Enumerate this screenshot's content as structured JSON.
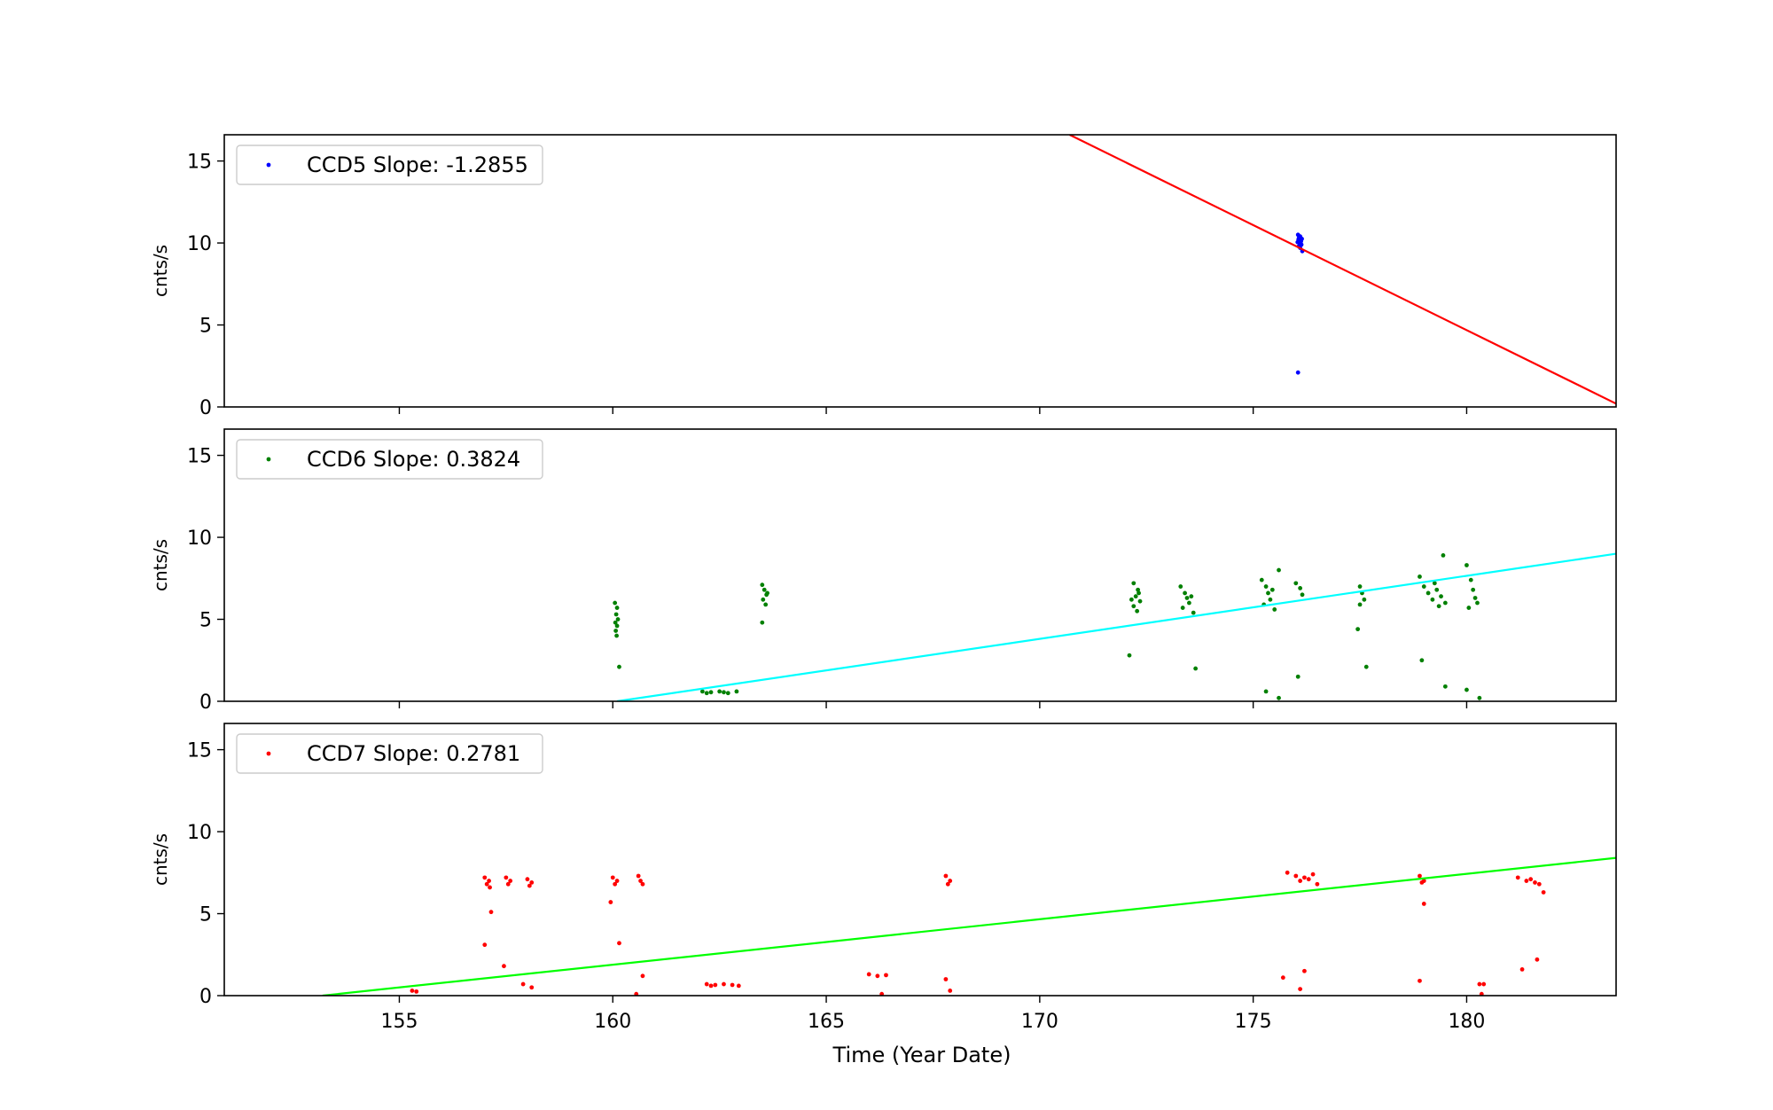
{
  "xlabel": "Time (Year Date)",
  "chart_data": [
    {
      "type": "scatter",
      "ylabel": "cnts/s",
      "legend": "CCD5 Slope: -1.2855",
      "legend_position": "top-left",
      "xlim": [
        150.9,
        183.5
      ],
      "ylim": [
        0,
        16.6
      ],
      "yticks": [
        "0",
        "5",
        "10",
        "15"
      ],
      "xticks": [
        "155",
        "160",
        "165",
        "170",
        "175",
        "180"
      ],
      "point_color": "#0000ff",
      "fit_color": "#ff0000",
      "fit_line": {
        "x": [
          170.7,
          183.5
        ],
        "y": [
          16.6,
          0.2
        ]
      },
      "points": [
        [
          176.05,
          10.5
        ],
        [
          176.07,
          10.3
        ],
        [
          176.1,
          10.4
        ],
        [
          176.12,
          10.1
        ],
        [
          176.08,
          10.0
        ],
        [
          176.13,
          9.9
        ],
        [
          176.06,
          10.2
        ],
        [
          176.1,
          9.7
        ],
        [
          176.15,
          9.5
        ],
        [
          176.09,
          10.35
        ],
        [
          176.11,
          10.15
        ],
        [
          176.04,
          10.05
        ],
        [
          176.14,
          10.25
        ],
        [
          176.07,
          9.8
        ],
        [
          176.05,
          2.1
        ]
      ]
    },
    {
      "type": "scatter",
      "ylabel": "cnts/s",
      "legend": "CCD6 Slope: 0.3824",
      "legend_position": "top-left",
      "xlim": [
        150.9,
        183.5
      ],
      "ylim": [
        0,
        16.6
      ],
      "yticks": [
        "0",
        "5",
        "10",
        "15"
      ],
      "xticks": [
        "155",
        "160",
        "165",
        "170",
        "175",
        "180"
      ],
      "point_color": "#008000",
      "fit_color": "#00ffff",
      "fit_line": {
        "x": [
          160.1,
          183.5
        ],
        "y": [
          0,
          9.0
        ]
      },
      "points": [
        [
          160.05,
          6.0
        ],
        [
          160.1,
          5.7
        ],
        [
          160.08,
          5.3
        ],
        [
          160.12,
          5.0
        ],
        [
          160.06,
          4.8
        ],
        [
          160.1,
          4.6
        ],
        [
          160.07,
          4.3
        ],
        [
          160.09,
          4.0
        ],
        [
          160.15,
          2.1
        ],
        [
          162.1,
          0.6
        ],
        [
          162.3,
          0.55
        ],
        [
          162.5,
          0.6
        ],
        [
          162.7,
          0.5
        ],
        [
          162.9,
          0.6
        ],
        [
          162.2,
          0.5
        ],
        [
          162.6,
          0.55
        ],
        [
          163.5,
          7.1
        ],
        [
          163.55,
          6.8
        ],
        [
          163.6,
          6.5
        ],
        [
          163.52,
          6.2
        ],
        [
          163.58,
          5.9
        ],
        [
          163.62,
          6.6
        ],
        [
          163.5,
          4.8
        ],
        [
          172.2,
          7.2
        ],
        [
          172.3,
          6.8
        ],
        [
          172.25,
          6.4
        ],
        [
          172.35,
          6.1
        ],
        [
          172.2,
          5.8
        ],
        [
          172.28,
          5.5
        ],
        [
          172.32,
          6.6
        ],
        [
          172.15,
          6.2
        ],
        [
          172.1,
          2.8
        ],
        [
          173.3,
          7.0
        ],
        [
          173.4,
          6.6
        ],
        [
          173.45,
          6.3
        ],
        [
          173.5,
          6.0
        ],
        [
          173.35,
          5.7
        ],
        [
          173.55,
          6.4
        ],
        [
          173.6,
          5.4
        ],
        [
          173.65,
          2.0
        ],
        [
          175.2,
          7.4
        ],
        [
          175.3,
          7.0
        ],
        [
          175.35,
          6.6
        ],
        [
          175.4,
          6.2
        ],
        [
          175.25,
          5.9
        ],
        [
          175.45,
          6.8
        ],
        [
          175.5,
          5.6
        ],
        [
          175.6,
          8.0
        ],
        [
          175.3,
          0.6
        ],
        [
          175.6,
          0.2
        ],
        [
          176.0,
          7.2
        ],
        [
          176.1,
          6.9
        ],
        [
          176.15,
          6.5
        ],
        [
          176.05,
          1.5
        ],
        [
          177.5,
          7.0
        ],
        [
          177.55,
          6.6
        ],
        [
          177.6,
          6.2
        ],
        [
          177.5,
          5.9
        ],
        [
          177.45,
          4.4
        ],
        [
          177.65,
          2.1
        ],
        [
          178.9,
          7.6
        ],
        [
          179.0,
          7.0
        ],
        [
          179.1,
          6.6
        ],
        [
          179.2,
          6.2
        ],
        [
          179.3,
          6.8
        ],
        [
          179.4,
          6.4
        ],
        [
          179.5,
          6.0
        ],
        [
          179.35,
          5.8
        ],
        [
          179.25,
          7.2
        ],
        [
          179.45,
          8.9
        ],
        [
          178.95,
          2.5
        ],
        [
          179.5,
          0.9
        ],
        [
          180.0,
          8.3
        ],
        [
          180.1,
          7.4
        ],
        [
          180.15,
          6.8
        ],
        [
          180.2,
          6.3
        ],
        [
          180.25,
          6.0
        ],
        [
          180.05,
          5.7
        ],
        [
          180.0,
          0.7
        ],
        [
          180.3,
          0.2
        ]
      ]
    },
    {
      "type": "scatter",
      "ylabel": "cnts/s",
      "legend": "CCD7 Slope: 0.2781",
      "legend_position": "top-left",
      "xlim": [
        150.9,
        183.5
      ],
      "ylim": [
        0,
        16.6
      ],
      "yticks": [
        "0",
        "5",
        "10",
        "15"
      ],
      "xticks": [
        "155",
        "160",
        "165",
        "170",
        "175",
        "180"
      ],
      "point_color": "#ff0000",
      "fit_color": "#00ff00",
      "fit_line": {
        "x": [
          153.2,
          183.5
        ],
        "y": [
          0,
          8.4
        ]
      },
      "points": [
        [
          155.3,
          0.3
        ],
        [
          155.4,
          0.25
        ],
        [
          157.0,
          7.2
        ],
        [
          157.1,
          7.0
        ],
        [
          157.05,
          6.8
        ],
        [
          157.12,
          6.6
        ],
        [
          157.0,
          3.1
        ],
        [
          157.15,
          5.1
        ],
        [
          157.5,
          7.2
        ],
        [
          157.6,
          7.0
        ],
        [
          157.55,
          6.8
        ],
        [
          157.45,
          1.8
        ],
        [
          158.0,
          7.1
        ],
        [
          158.1,
          6.9
        ],
        [
          158.05,
          6.7
        ],
        [
          157.9,
          0.7
        ],
        [
          158.1,
          0.5
        ],
        [
          160.0,
          7.2
        ],
        [
          160.1,
          7.0
        ],
        [
          160.05,
          6.8
        ],
        [
          159.95,
          5.7
        ],
        [
          160.15,
          3.2
        ],
        [
          160.6,
          7.3
        ],
        [
          160.65,
          7.0
        ],
        [
          160.7,
          6.8
        ],
        [
          160.7,
          1.2
        ],
        [
          160.55,
          0.1
        ],
        [
          162.2,
          0.7
        ],
        [
          162.4,
          0.65
        ],
        [
          162.6,
          0.7
        ],
        [
          162.8,
          0.65
        ],
        [
          162.95,
          0.6
        ],
        [
          162.3,
          0.6
        ],
        [
          166.0,
          1.3
        ],
        [
          166.2,
          1.2
        ],
        [
          166.4,
          1.25
        ],
        [
          166.3,
          0.1
        ],
        [
          167.8,
          7.3
        ],
        [
          167.9,
          7.0
        ],
        [
          167.85,
          6.8
        ],
        [
          167.8,
          1.0
        ],
        [
          167.9,
          0.3
        ],
        [
          175.8,
          7.5
        ],
        [
          176.0,
          7.3
        ],
        [
          176.2,
          7.2
        ],
        [
          176.4,
          7.4
        ],
        [
          176.1,
          7.0
        ],
        [
          176.3,
          7.1
        ],
        [
          176.5,
          6.8
        ],
        [
          175.7,
          1.1
        ],
        [
          176.2,
          1.5
        ],
        [
          176.1,
          0.4
        ],
        [
          178.9,
          7.3
        ],
        [
          179.0,
          7.0
        ],
        [
          178.95,
          6.9
        ],
        [
          179.0,
          5.6
        ],
        [
          178.9,
          0.9
        ],
        [
          180.3,
          0.7
        ],
        [
          180.4,
          0.7
        ],
        [
          180.35,
          0.1
        ],
        [
          181.2,
          7.2
        ],
        [
          181.4,
          7.0
        ],
        [
          181.6,
          6.9
        ],
        [
          181.5,
          7.1
        ],
        [
          181.7,
          6.8
        ],
        [
          181.8,
          6.3
        ],
        [
          181.3,
          1.6
        ],
        [
          181.65,
          2.2
        ]
      ]
    }
  ]
}
